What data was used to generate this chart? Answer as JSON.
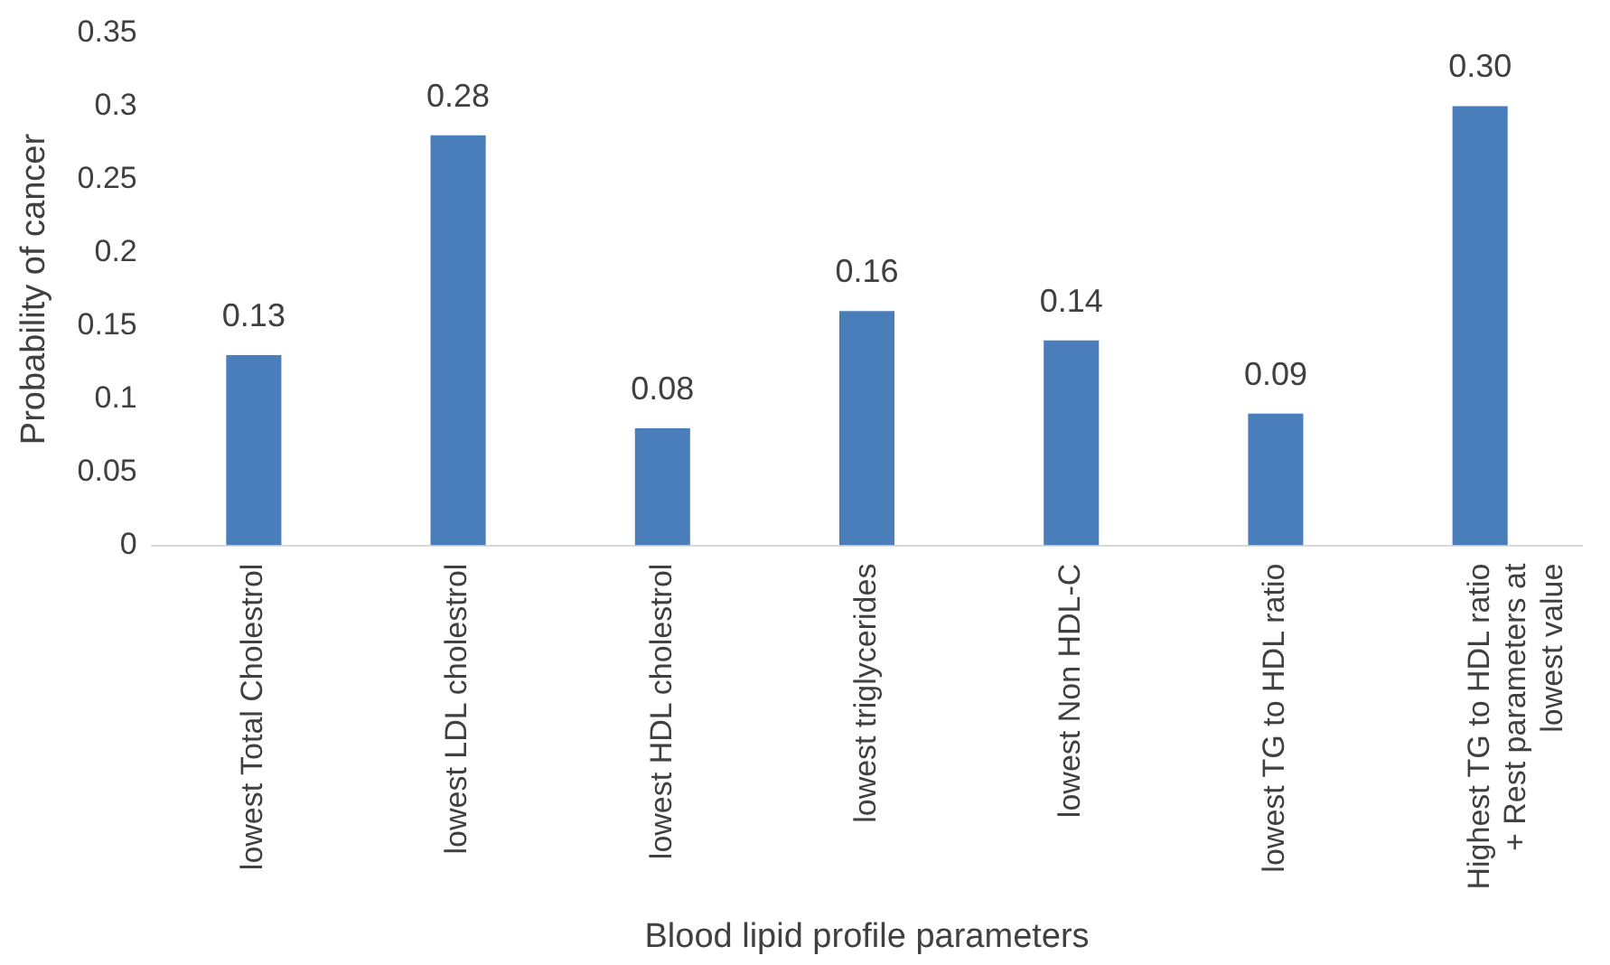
{
  "chart_data": {
    "type": "bar",
    "xlabel": "Blood lipid profile parameters",
    "ylabel": "Probability of cancer",
    "categories": [
      "lowest Total Cholestrol",
      "lowest LDL cholestrol",
      "lowest HDL cholestrol",
      "lowest triglycerides",
      "lowest Non HDL-C",
      "lowest TG to HDL ratio",
      "Highest TG to HDL ratio + Rest parameters at lowest value"
    ],
    "values": [
      0.13,
      0.28,
      0.08,
      0.16,
      0.14,
      0.09,
      0.3
    ],
    "value_labels": [
      "0.13",
      "0.28",
      "0.08",
      "0.16",
      "0.14",
      "0.09",
      "0.30"
    ],
    "color": "#4a7ebb",
    "ylim": [
      0,
      0.35
    ],
    "yticks": [
      0,
      0.05,
      0.1,
      0.15,
      0.2,
      0.25,
      0.3,
      0.35
    ],
    "grid": false,
    "legend": false
  }
}
